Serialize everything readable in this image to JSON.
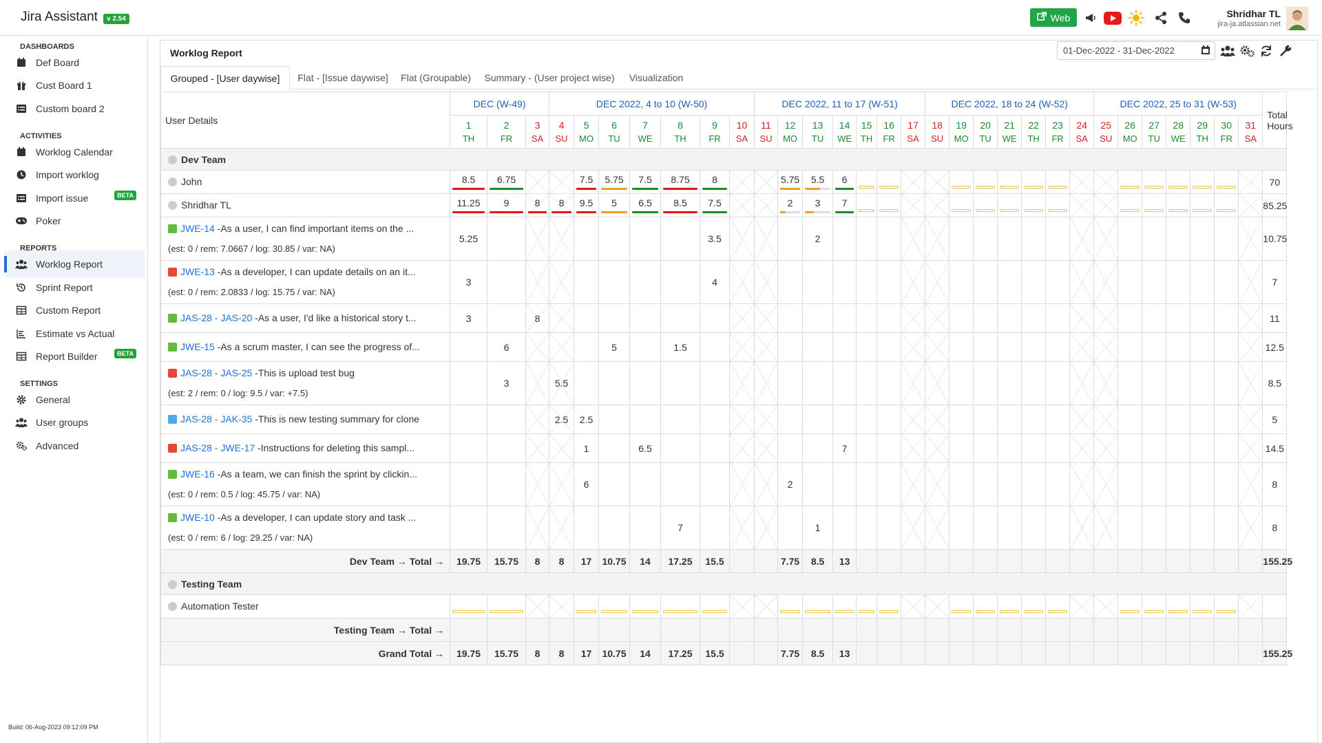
{
  "app": {
    "title": "Jira Assistant",
    "version": "v 2.54"
  },
  "topbar": {
    "web_label": "Web",
    "user_name": "Shridhar TL",
    "user_domain": "jira-ja.atlassian.net"
  },
  "sidebar": {
    "sections": [
      {
        "title": "DASHBOARDS",
        "items": [
          {
            "label": "Def Board",
            "icon": "calendar-icon"
          },
          {
            "label": "Cust Board 1",
            "icon": "gift-icon"
          },
          {
            "label": "Custom board 2",
            "icon": "list-icon"
          }
        ]
      },
      {
        "title": "ACTIVITIES",
        "items": [
          {
            "label": "Worklog Calendar",
            "icon": "calendar-icon"
          },
          {
            "label": "Import worklog",
            "icon": "clock-icon"
          },
          {
            "label": "Import issue",
            "icon": "list-icon",
            "badge": "BETA"
          },
          {
            "label": "Poker",
            "icon": "gamepad-icon"
          }
        ]
      },
      {
        "title": "REPORTS",
        "items": [
          {
            "label": "Worklog Report",
            "icon": "users-icon",
            "active": true
          },
          {
            "label": "Sprint Report",
            "icon": "history-icon"
          },
          {
            "label": "Custom Report",
            "icon": "table-icon"
          },
          {
            "label": "Estimate vs Actual",
            "icon": "chart-icon"
          },
          {
            "label": "Report Builder",
            "icon": "table-icon",
            "badge": "BETA"
          }
        ]
      },
      {
        "title": "SETTINGS",
        "items": [
          {
            "label": "General",
            "icon": "gear-icon"
          },
          {
            "label": "User groups",
            "icon": "users-icon"
          },
          {
            "label": "Advanced",
            "icon": "gears-icon"
          }
        ]
      }
    ],
    "build": "Build: 06-Aug-2023 09:12:09 PM"
  },
  "report": {
    "title": "Worklog Report",
    "date_range": "01-Dec-2022 - 31-Dec-2022",
    "tabs": [
      "Grouped - [User daywise]",
      "Flat - [Issue daywise]",
      "Flat (Groupable)",
      "Summary - (User project wise)",
      "Visualization"
    ],
    "user_details_header": "User Details",
    "total_header_1": "Total",
    "total_header_2": "Hours",
    "weeks": [
      {
        "label": "DEC (W-49)",
        "span": 3
      },
      {
        "label": "DEC 2022, 4 to 10 (W-50)",
        "span": 7
      },
      {
        "label": "DEC 2022, 11 to 17 (W-51)",
        "span": 7
      },
      {
        "label": "DEC 2022, 18 to 24 (W-52)",
        "span": 7
      },
      {
        "label": "DEC 2022, 25 to 31 (W-53)",
        "span": 7
      }
    ],
    "days": [
      {
        "d": "1",
        "w": "TH"
      },
      {
        "d": "2",
        "w": "FR"
      },
      {
        "d": "3",
        "w": "SA"
      },
      {
        "d": "4",
        "w": "SU"
      },
      {
        "d": "5",
        "w": "MO"
      },
      {
        "d": "6",
        "w": "TU"
      },
      {
        "d": "7",
        "w": "WE"
      },
      {
        "d": "8",
        "w": "TH"
      },
      {
        "d": "9",
        "w": "FR"
      },
      {
        "d": "10",
        "w": "SA"
      },
      {
        "d": "11",
        "w": "SU"
      },
      {
        "d": "12",
        "w": "MO"
      },
      {
        "d": "13",
        "w": "TU"
      },
      {
        "d": "14",
        "w": "WE"
      },
      {
        "d": "15",
        "w": "TH"
      },
      {
        "d": "16",
        "w": "FR"
      },
      {
        "d": "17",
        "w": "SA"
      },
      {
        "d": "18",
        "w": "SU"
      },
      {
        "d": "19",
        "w": "MO"
      },
      {
        "d": "20",
        "w": "TU"
      },
      {
        "d": "21",
        "w": "WE"
      },
      {
        "d": "22",
        "w": "TH"
      },
      {
        "d": "23",
        "w": "FR"
      },
      {
        "d": "24",
        "w": "SA"
      },
      {
        "d": "25",
        "w": "SU"
      },
      {
        "d": "26",
        "w": "MO"
      },
      {
        "d": "27",
        "w": "TU"
      },
      {
        "d": "28",
        "w": "WE"
      },
      {
        "d": "29",
        "w": "TH"
      },
      {
        "d": "30",
        "w": "FR"
      },
      {
        "d": "31",
        "w": "SA"
      }
    ],
    "groups": [
      {
        "name": "Dev Team",
        "users": [
          {
            "name": "John",
            "total": "70",
            "values": [
              "8.5",
              "6.75",
              "",
              "",
              "7.5",
              "5.75",
              "7.5",
              "8.75",
              "8",
              "",
              "",
              "5.75",
              "5.5",
              "6",
              "",
              "",
              "",
              "",
              "",
              "",
              "",
              "",
              "",
              "",
              "",
              "",
              "",
              "",
              "",
              "",
              ""
            ],
            "bars": [
              "red",
              "green",
              "",
              "",
              "red",
              "orange",
              "green",
              "red",
              "green",
              "",
              "",
              "orange",
              "partial:60%",
              "green",
              "empty",
              "empty",
              "",
              "",
              "empty",
              "empty",
              "empty",
              "empty",
              "empty",
              "",
              "",
              "empty",
              "empty",
              "empty",
              "empty",
              "empty",
              ""
            ]
          },
          {
            "name": "Shridhar TL",
            "total": "85.25",
            "values": [
              "11.25",
              "9",
              "8",
              "8",
              "9.5",
              "5",
              "6.5",
              "8.5",
              "7.5",
              "",
              "",
              "2",
              "3",
              "7",
              "",
              "",
              "",
              "",
              "",
              "",
              "",
              "",
              "",
              "",
              "",
              "",
              "",
              "",
              "",
              "",
              ""
            ],
            "bars": [
              "red",
              "red",
              "red",
              "red",
              "red",
              "orange",
              "green",
              "red",
              "green",
              "",
              "",
              "partial:25%",
              "partial:35%",
              "green",
              "empty",
              "empty",
              "",
              "",
              "empty",
              "empty",
              "empty",
              "empty",
              "empty",
              "",
              "",
              "empty",
              "empty",
              "empty",
              "empty",
              "empty",
              ""
            ]
          }
        ],
        "issues": [
          {
            "type": "story",
            "key": "JWE-14",
            "summary": " -As a user, I can find important items on the ...",
            "sub": "(est: 0 / rem: 7.0667 / log: 30.85 / var: NA)",
            "total": "10.75",
            "values": {
              "0": "5.25",
              "8": "3.5",
              "12": "2"
            }
          },
          {
            "type": "bug",
            "key": "JWE-13",
            "summary": " -As a developer, I can update details on an it...",
            "sub": "(est: 0 / rem: 2.0833 / log: 15.75 / var: NA)",
            "total": "7",
            "values": {
              "0": "3",
              "8": "4"
            }
          },
          {
            "type": "story",
            "key": "JAS-28 - JAS-20",
            "summary": " -As a user, I'd like a historical story t...",
            "sub": "",
            "total": "11",
            "values": {
              "0": "3",
              "2": "8"
            }
          },
          {
            "type": "story",
            "key": "JWE-15",
            "summary": " -As a scrum master, I can see the progress of...",
            "sub": "",
            "total": "12.5",
            "values": {
              "1": "6",
              "5": "5",
              "7": "1.5"
            }
          },
          {
            "type": "bug",
            "key": "JAS-28 - JAS-25",
            "summary": " -This is upload test bug",
            "sub": "(est: 2 / rem: 0 / log: 9.5 / var: +7.5)",
            "total": "8.5",
            "values": {
              "1": "3",
              "3": "5.5"
            }
          },
          {
            "type": "task",
            "key": "JAS-28 - JAK-35",
            "summary": " -This is new testing summary for clone",
            "sub": "",
            "total": "5",
            "values": {
              "3": "2.5",
              "4": "2.5"
            }
          },
          {
            "type": "bug",
            "key": "JAS-28 - JWE-17",
            "summary": " -Instructions for deleting this sampl...",
            "sub": "",
            "total": "14.5",
            "values": {
              "4": "1",
              "6": "6.5",
              "13": "7"
            }
          },
          {
            "type": "story",
            "key": "JWE-16",
            "summary": " -As a team, we can finish the sprint by clickin...",
            "sub": "(est: 0 / rem: 0.5 / log: 45.75 / var: NA)",
            "total": "8",
            "values": {
              "4": "6",
              "11": "2"
            }
          },
          {
            "type": "story",
            "key": "JWE-10",
            "summary": " -As a developer, I can update story and task ...",
            "sub": "(est: 0 / rem: 6 / log: 29.25 / var: NA)",
            "total": "8",
            "values": {
              "7": "7",
              "12": "1"
            }
          }
        ],
        "total_label": "Dev Team → Total →",
        "totals": [
          "19.75",
          "15.75",
          "8",
          "8",
          "17",
          "10.75",
          "14",
          "17.25",
          "15.5",
          "",
          "",
          "7.75",
          "8.5",
          "13",
          "",
          "",
          "",
          "",
          "",
          "",
          "",
          "",
          "",
          "",
          "",
          "",
          "",
          "",
          "",
          "",
          ""
        ],
        "grand": "155.25"
      },
      {
        "name": "Testing Team",
        "users": [
          {
            "name": "Automation Tester",
            "total": "",
            "values": [
              "",
              "",
              "",
              "",
              "",
              "",
              "",
              "",
              "",
              "",
              "",
              "",
              "",
              "",
              "",
              "",
              "",
              "",
              "",
              "",
              "",
              "",
              "",
              "",
              "",
              "",
              "",
              "",
              "",
              "",
              ""
            ],
            "bars": [
              "empty",
              "empty",
              "",
              "",
              "empty",
              "empty",
              "empty",
              "empty",
              "empty",
              "",
              "",
              "empty",
              "empty",
              "empty",
              "empty",
              "empty",
              "",
              "",
              "empty",
              "empty",
              "empty",
              "empty",
              "empty",
              "",
              "",
              "empty",
              "empty",
              "empty",
              "empty",
              "empty",
              ""
            ]
          }
        ],
        "issues": [],
        "total_label": "Testing Team → Total →",
        "totals": [
          "",
          "",
          "",
          "",
          "",
          "",
          "",
          "",
          "",
          "",
          "",
          "",
          "",
          "",
          "",
          "",
          "",
          "",
          "",
          "",
          "",
          "",
          "",
          "",
          "",
          "",
          "",
          "",
          "",
          "",
          ""
        ],
        "grand": ""
      }
    ],
    "grand_total_label": "Grand Total →",
    "grand_totals": [
      "19.75",
      "15.75",
      "8",
      "8",
      "17",
      "10.75",
      "14",
      "17.25",
      "15.5",
      "",
      "",
      "7.75",
      "8.5",
      "13",
      "",
      "",
      "",
      "",
      "",
      "",
      "",
      "",
      "",
      "",
      "",
      "",
      "",
      "",
      "",
      "",
      ""
    ],
    "grand_total": "155.25"
  },
  "colors": {
    "accent": "#1f6fd6",
    "green": "#21a33a",
    "red": "#d02020",
    "bar_red": "#e01818",
    "bar_green": "#1c8a2c",
    "bar_orange": "#f0a020"
  }
}
